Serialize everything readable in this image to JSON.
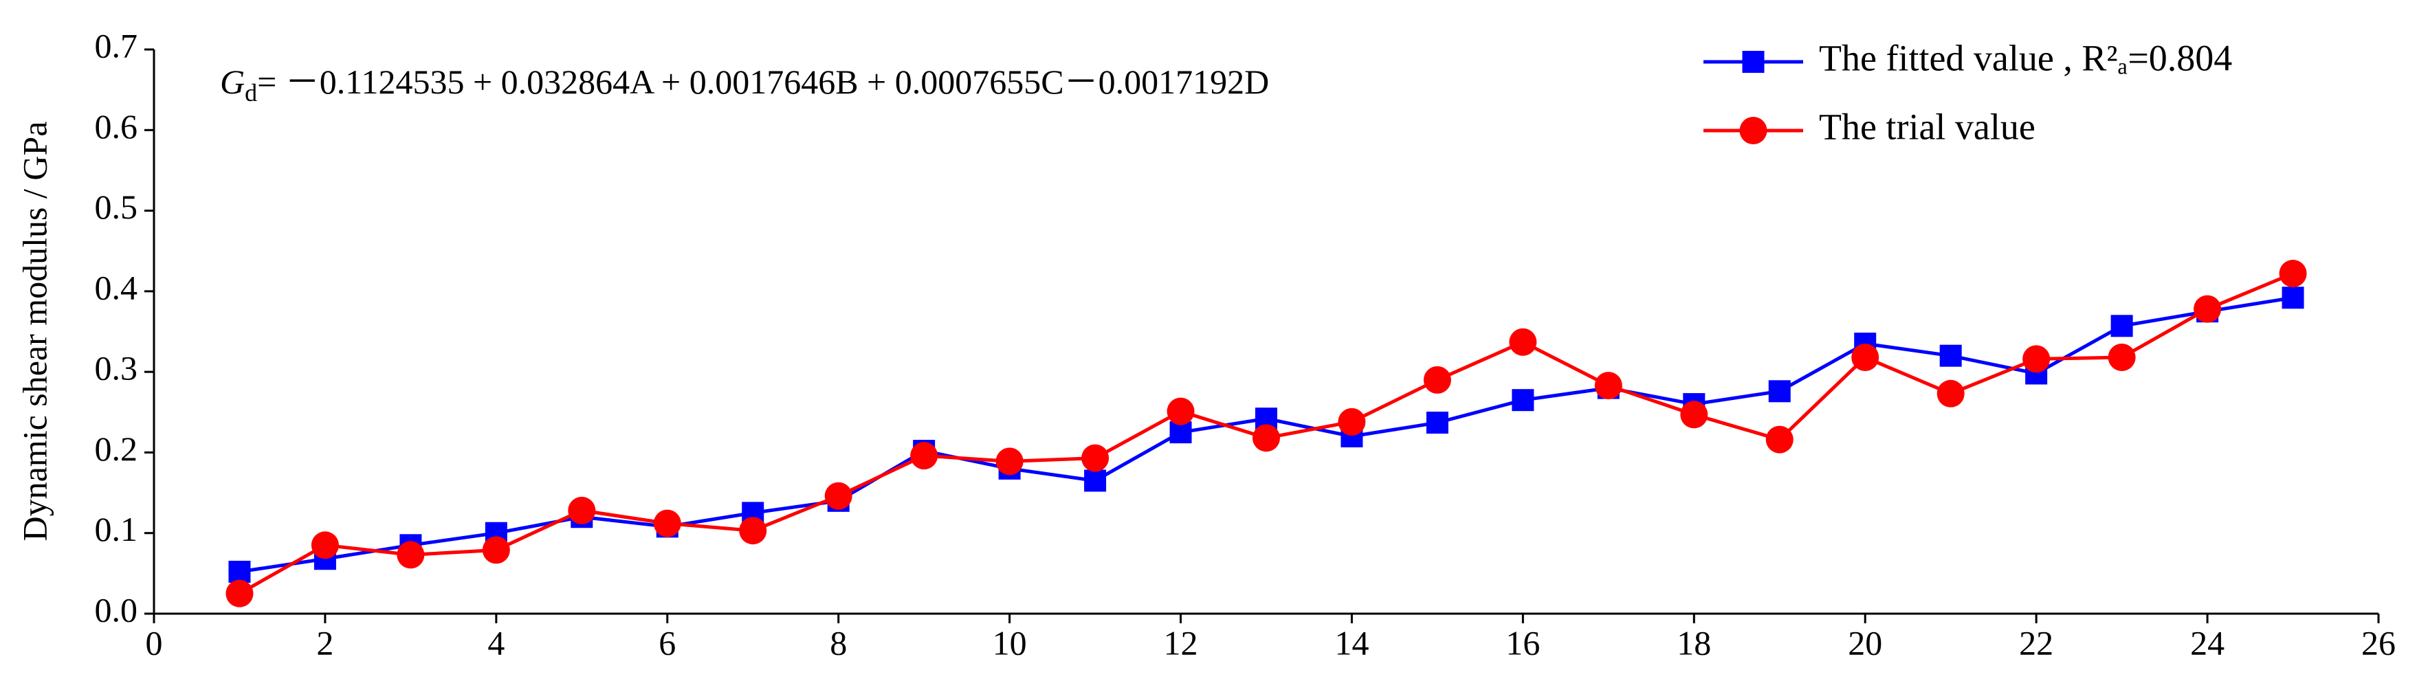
{
  "chart_data": {
    "type": "line",
    "y_label": "Dynamic shear modulus / GPa",
    "annotation": {
      "symbol": "G",
      "subscript": "d",
      "text": "= －0.1124535 + 0.032864A + 0.0017646B + 0.0007655C－0.0017192D"
    },
    "x": [
      1,
      2,
      3,
      4,
      5,
      6,
      7,
      8,
      9,
      10,
      11,
      12,
      13,
      14,
      15,
      16,
      17,
      18,
      19,
      20,
      21,
      22,
      23,
      24,
      25
    ],
    "series": [
      {
        "name": "The fitted value , R²ₐ=0.804",
        "color": "#0000ff",
        "marker": "square",
        "values": [
          0.052,
          0.068,
          0.085,
          0.1,
          0.12,
          0.108,
          0.125,
          0.14,
          0.202,
          0.18,
          0.165,
          0.225,
          0.242,
          0.22,
          0.237,
          0.265,
          0.28,
          0.26,
          0.276,
          0.335,
          0.32,
          0.298,
          0.357,
          0.375,
          0.392
        ]
      },
      {
        "name": "The trial value",
        "color": "#ff0000",
        "marker": "circle",
        "values": [
          0.025,
          0.085,
          0.073,
          0.079,
          0.128,
          0.112,
          0.103,
          0.146,
          0.196,
          0.189,
          0.193,
          0.251,
          0.218,
          0.238,
          0.29,
          0.337,
          0.283,
          0.247,
          0.216,
          0.318,
          0.273,
          0.316,
          0.318,
          0.378,
          0.422
        ]
      }
    ],
    "xlim": [
      0,
      26
    ],
    "xticks": [
      0,
      2,
      4,
      6,
      8,
      10,
      12,
      14,
      16,
      18,
      20,
      22,
      24,
      26
    ],
    "ylim": [
      0,
      0.7
    ],
    "yticks": [
      {
        "value": 0,
        "label": "0.0"
      },
      0.1,
      0.2,
      0.3,
      0.4,
      0.5,
      0.6,
      0.7
    ],
    "grid": false,
    "legend": "top-right"
  }
}
